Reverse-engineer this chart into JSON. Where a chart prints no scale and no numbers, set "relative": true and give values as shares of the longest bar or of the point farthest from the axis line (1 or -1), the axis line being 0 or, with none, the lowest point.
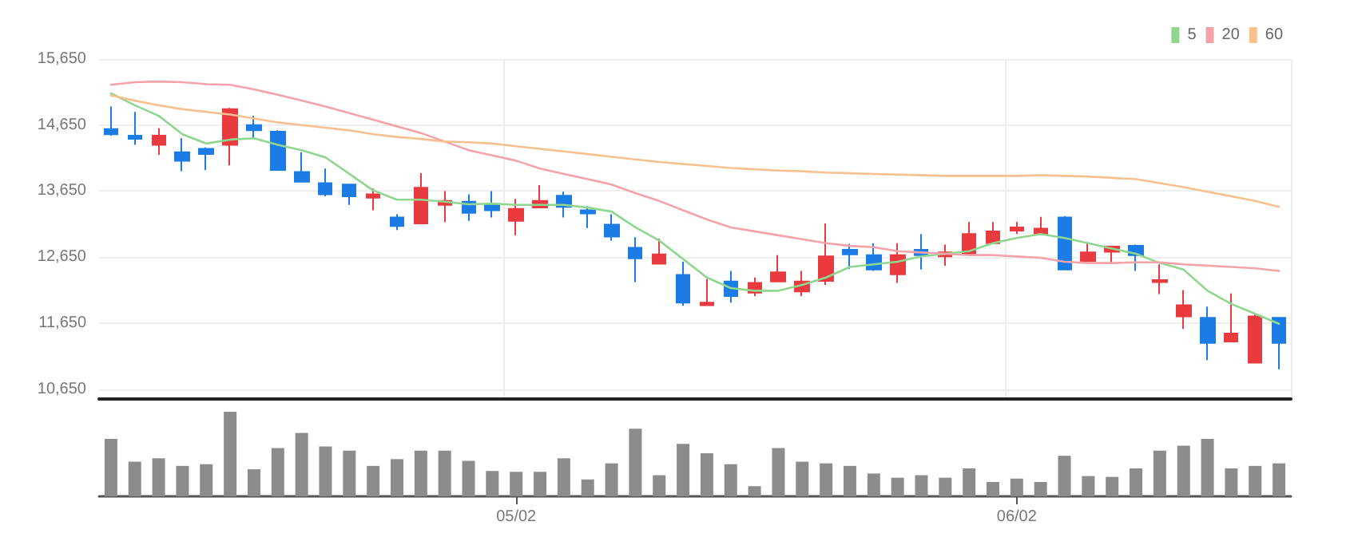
{
  "chart_data": [
    {
      "type": "candlestick",
      "categories": [
        null,
        null,
        null,
        null,
        null,
        null,
        null,
        null,
        null,
        null,
        null,
        null,
        null,
        null,
        null,
        null,
        null,
        null,
        null,
        null,
        null,
        null,
        null,
        null,
        null,
        null,
        null,
        null,
        null,
        null,
        null,
        null,
        null,
        null,
        null,
        null,
        null,
        null,
        null,
        null,
        null,
        null,
        null,
        null,
        null,
        null,
        null,
        null,
        null,
        null
      ],
      "ohlc": [
        [
          14590,
          14930,
          14490,
          14510
        ],
        [
          14490,
          14850,
          14350,
          14440
        ],
        [
          14350,
          14600,
          14200,
          14490
        ],
        [
          14240,
          14450,
          13950,
          14110
        ],
        [
          14290,
          14310,
          13970,
          14210
        ],
        [
          14350,
          14910,
          14040,
          14890
        ],
        [
          14650,
          14790,
          14450,
          14570
        ],
        [
          14550,
          14570,
          13970,
          13970
        ],
        [
          13940,
          14240,
          13780,
          13790
        ],
        [
          13770,
          13990,
          13570,
          13600
        ],
        [
          13750,
          13760,
          13440,
          13570
        ],
        [
          13550,
          13690,
          13360,
          13600
        ],
        [
          13250,
          13300,
          13060,
          13120
        ],
        [
          13160,
          13920,
          13150,
          13700
        ],
        [
          13440,
          13650,
          13180,
          13500
        ],
        [
          13490,
          13600,
          13200,
          13320
        ],
        [
          13440,
          13650,
          13250,
          13360
        ],
        [
          13200,
          13530,
          12980,
          13380
        ],
        [
          13400,
          13740,
          13390,
          13500
        ],
        [
          13580,
          13640,
          13250,
          13410
        ],
        [
          13360,
          13420,
          13090,
          13310
        ],
        [
          13140,
          13300,
          12900,
          12960
        ],
        [
          12790,
          12950,
          12270,
          12630
        ],
        [
          12550,
          12930,
          12550,
          12690
        ],
        [
          12380,
          12580,
          11910,
          11960
        ],
        [
          11920,
          12320,
          11920,
          11960
        ],
        [
          12280,
          12440,
          11960,
          12060
        ],
        [
          12110,
          12340,
          12060,
          12260
        ],
        [
          12280,
          12680,
          12280,
          12420
        ],
        [
          12130,
          12440,
          12060,
          12280
        ],
        [
          12290,
          13160,
          12230,
          12660
        ],
        [
          12760,
          12850,
          12470,
          12690
        ],
        [
          12680,
          12860,
          12440,
          12460
        ],
        [
          12390,
          12860,
          12260,
          12680
        ],
        [
          12760,
          13000,
          12460,
          12680
        ],
        [
          12660,
          12840,
          12520,
          12720
        ],
        [
          12700,
          13180,
          12700,
          13000
        ],
        [
          12860,
          13180,
          12860,
          13040
        ],
        [
          13050,
          13180,
          13000,
          13100
        ],
        [
          13000,
          13260,
          13000,
          13080
        ],
        [
          13250,
          13270,
          12460,
          12460
        ],
        [
          12590,
          12860,
          12590,
          12720
        ],
        [
          12730,
          12820,
          12560,
          12810
        ],
        [
          12820,
          12840,
          12440,
          12680
        ],
        [
          12270,
          12540,
          12090,
          12300
        ],
        [
          11750,
          12150,
          11560,
          11920
        ],
        [
          11730,
          11900,
          11090,
          11350
        ],
        [
          11370,
          12100,
          11370,
          11490
        ],
        [
          11050,
          11800,
          11050,
          11750
        ],
        [
          11730,
          11730,
          10950,
          11350
        ]
      ],
      "colors": [
        "#1c7ce6",
        "#1c7ce6",
        "#e83a3f",
        "#1c7ce6",
        "#1c7ce6",
        "#e83a3f",
        "#1c7ce6",
        "#1c7ce6",
        "#1c7ce6",
        "#1c7ce6",
        "#1c7ce6",
        "#e83a3f",
        "#1c7ce6",
        "#e83a3f",
        "#e83a3f",
        "#1c7ce6",
        "#1c7ce6",
        "#e83a3f",
        "#e83a3f",
        "#1c7ce6",
        "#1c7ce6",
        "#1c7ce6",
        "#1c7ce6",
        "#e83a3f",
        "#1c7ce6",
        "#e83a3f",
        "#1c7ce6",
        "#e83a3f",
        "#e83a3f",
        "#e83a3f",
        "#e83a3f",
        "#1c7ce6",
        "#1c7ce6",
        "#e83a3f",
        "#1c7ce6",
        "#e83a3f",
        "#e83a3f",
        "#e83a3f",
        "#e83a3f",
        "#e83a3f",
        "#1c7ce6",
        "#e83a3f",
        "#e83a3f",
        "#1c7ce6",
        "#e83a3f",
        "#e83a3f",
        "#1c7ce6",
        "#e83a3f",
        "#e83a3f",
        "#1c7ce6"
      ],
      "series": [
        {
          "type": "line",
          "name": "5",
          "color": "#8fd68f",
          "values": [
            15130,
            14950,
            14790,
            14510,
            14370,
            14430,
            14450,
            14350,
            14270,
            14160,
            13910,
            13660,
            13520,
            13520,
            13490,
            13450,
            13460,
            13440,
            13440,
            13440,
            13400,
            13340,
            13100,
            12900,
            12620,
            12340,
            12180,
            12140,
            12140,
            12230,
            12340,
            12500,
            12540,
            12580,
            12660,
            12700,
            12740,
            12860,
            12940,
            13000,
            12940,
            12860,
            12780,
            12700,
            12560,
            12460,
            12140,
            11940,
            11790,
            11640
          ]
        },
        {
          "type": "line",
          "name": "20",
          "color": "#f4a3ab",
          "values": [
            15260,
            15300,
            15310,
            15300,
            15270,
            15260,
            15190,
            15110,
            15020,
            14930,
            14830,
            14730,
            14630,
            14530,
            14400,
            14270,
            14190,
            14110,
            13990,
            13910,
            13830,
            13750,
            13620,
            13500,
            13360,
            13220,
            13100,
            13040,
            12980,
            12920,
            12860,
            12820,
            12800,
            12740,
            12720,
            12700,
            12680,
            12680,
            12660,
            12640,
            12580,
            12560,
            12560,
            12570,
            12570,
            12540,
            12520,
            12500,
            12480,
            12440
          ]
        },
        {
          "type": "line",
          "name": "60",
          "color": "#f7c08f",
          "values": [
            15100,
            15020,
            14950,
            14890,
            14850,
            14810,
            14750,
            14690,
            14650,
            14610,
            14570,
            14510,
            14470,
            14440,
            14400,
            14390,
            14370,
            14330,
            14290,
            14250,
            14210,
            14170,
            14130,
            14090,
            14060,
            14030,
            14000,
            13980,
            13960,
            13950,
            13930,
            13920,
            13910,
            13900,
            13890,
            13880,
            13880,
            13880,
            13880,
            13890,
            13880,
            13870,
            13850,
            13830,
            13770,
            13710,
            13640,
            13570,
            13500,
            13410
          ]
        }
      ],
      "ylim": [
        10500,
        15650
      ],
      "yticks": [
        {
          "value": 10650,
          "label": "10,650"
        },
        {
          "value": 11650,
          "label": "11,650"
        },
        {
          "value": 12650,
          "label": "12,650"
        },
        {
          "value": 13650,
          "label": "13,650"
        },
        {
          "value": 14650,
          "label": "14,650"
        },
        {
          "value": 15650,
          "label": "15,650"
        }
      ],
      "grid": true,
      "legend": "top right",
      "marker": "none",
      "tick_labels": "y"
    },
    {
      "type": "bar",
      "relative": true,
      "color": "#8c8c8c",
      "tick_labels": "x",
      "categories": [
        null,
        null,
        null,
        null,
        null,
        null,
        null,
        null,
        null,
        null,
        null,
        null,
        null,
        null,
        null,
        null,
        null,
        "05/02",
        null,
        null,
        null,
        null,
        null,
        null,
        null,
        null,
        null,
        null,
        null,
        null,
        null,
        null,
        null,
        null,
        null,
        null,
        null,
        null,
        "06/02",
        null,
        null,
        null,
        null,
        null,
        null,
        null,
        null,
        null,
        null,
        null
      ],
      "values": [
        0.68,
        0.41,
        0.45,
        0.36,
        0.38,
        1,
        0.32,
        0.57,
        0.75,
        0.59,
        0.54,
        0.36,
        0.44,
        0.54,
        0.54,
        0.42,
        0.3,
        0.29,
        0.29,
        0.45,
        0.2,
        0.39,
        0.8,
        0.25,
        0.62,
        0.51,
        0.38,
        0.12,
        0.57,
        0.41,
        0.39,
        0.36,
        0.27,
        0.22,
        0.25,
        0.22,
        0.33,
        0.17,
        0.21,
        0.17,
        0.48,
        0.24,
        0.23,
        0.33,
        0.54,
        0.6,
        0.68,
        0.33,
        0.36,
        0.39
      ]
    }
  ]
}
